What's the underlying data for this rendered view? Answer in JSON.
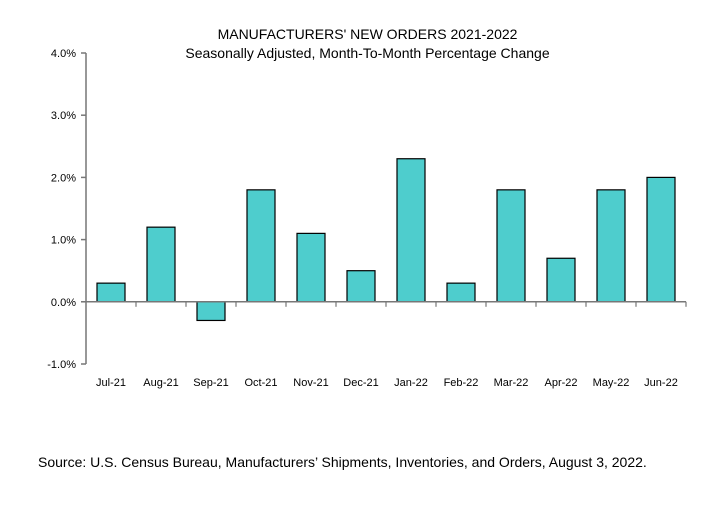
{
  "chart_data": {
    "type": "bar",
    "title": "MANUFACTURERS' NEW ORDERS 2021-2022",
    "subtitle": "Seasonally Adjusted,  Month-To-Month Percentage Change",
    "xlabel": "",
    "ylabel": "",
    "categories": [
      "Jul-21",
      "Aug-21",
      "Sep-21",
      "Oct-21",
      "Nov-21",
      "Dec-21",
      "Jan-22",
      "Feb-22",
      "Mar-22",
      "Apr-22",
      "May-22",
      "Jun-22"
    ],
    "values": [
      0.3,
      1.2,
      -0.3,
      1.8,
      1.1,
      0.5,
      2.3,
      0.3,
      1.8,
      0.7,
      1.8,
      2.0
    ],
    "ylim": [
      -1.0,
      4.0
    ],
    "yticks": [
      4.0,
      3.0,
      2.0,
      1.0,
      0.0,
      -1.0
    ],
    "ytick_labels": [
      "4.0%",
      "3.0%",
      "2.0%",
      "1.0%",
      "0.0%",
      "-1.0%"
    ],
    "grid": false,
    "bar_color": "#4ECDCD",
    "edge_color": "#000000"
  },
  "source": "Source: U.S. Census Bureau, Manufacturers’ Shipments, Inventories, and Orders, August 3, 2022."
}
